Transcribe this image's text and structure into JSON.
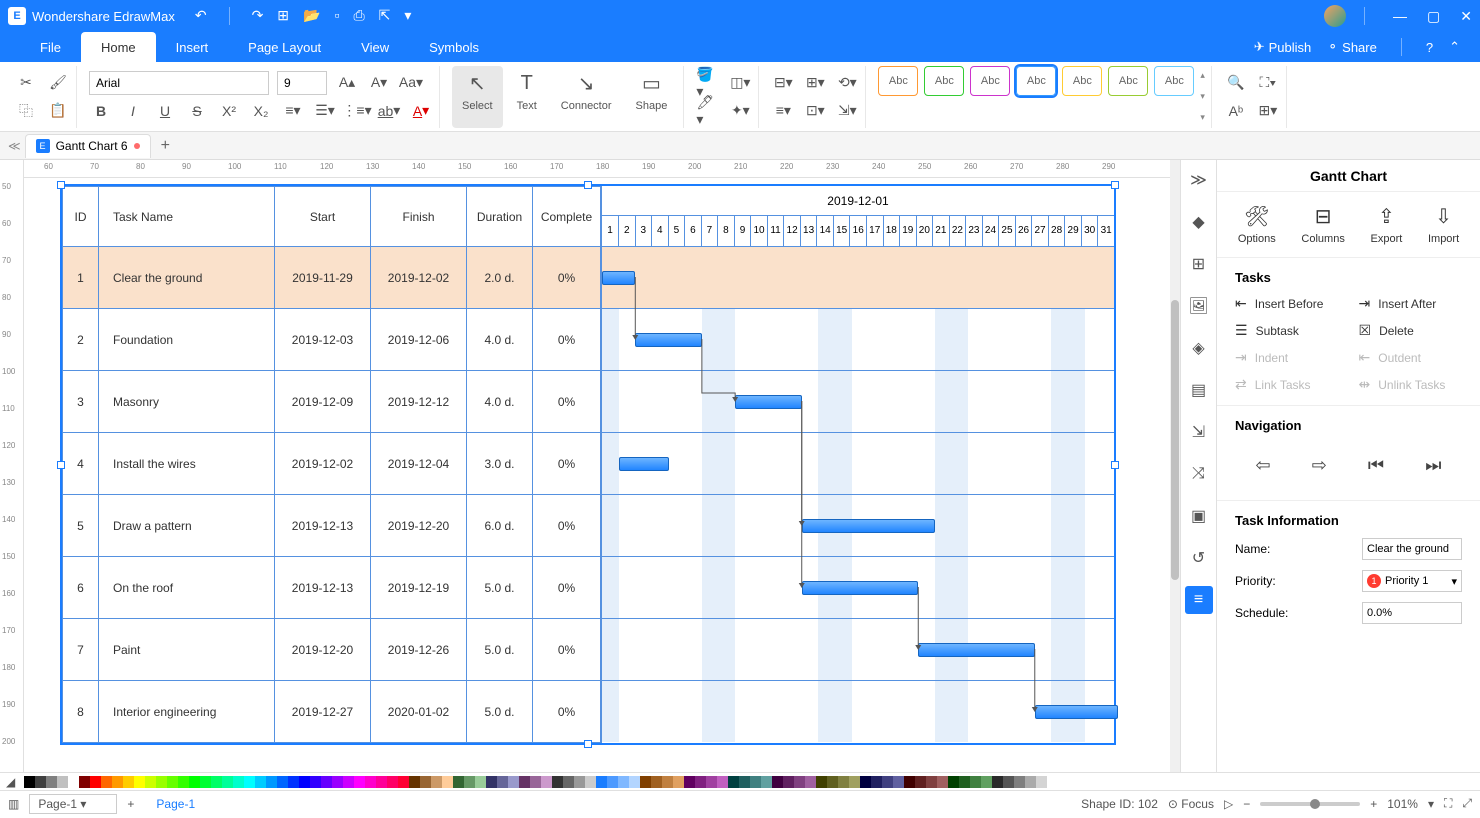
{
  "app": {
    "name": "Wondershare EdrawMax"
  },
  "win_controls": {
    "minimize": "—",
    "maximize": "▢",
    "close": "✕"
  },
  "menu": {
    "tabs": [
      "File",
      "Home",
      "Insert",
      "Page Layout",
      "View",
      "Symbols"
    ],
    "active": 1,
    "publish": "Publish",
    "share": "Share"
  },
  "ribbon": {
    "font": "Arial",
    "font_size": "9",
    "tools": {
      "select": "Select",
      "text": "Text",
      "connector": "Connector",
      "shape": "Shape"
    },
    "abc_colors": [
      "#ff9933",
      "#33cc33",
      "#cc33cc",
      "#3399ff",
      "#ffcc33",
      "#99cc33",
      "#66ccff"
    ]
  },
  "doc_tab": {
    "name": "Gantt Chart 6"
  },
  "ruler_h_start": 60,
  "ruler_h_step": 10,
  "ruler_h_count": 24,
  "ruler_v_start": 50,
  "ruler_v_step": 10,
  "ruler_v_count": 16,
  "gantt": {
    "month_label": "2019-12-01",
    "day_count": 31,
    "weekend_cols": [
      [
        0,
        1
      ],
      [
        6,
        8
      ],
      [
        13,
        15
      ],
      [
        20,
        22
      ],
      [
        27,
        29
      ]
    ],
    "columns": [
      "ID",
      "Task Name",
      "Start",
      "Finish",
      "Duration",
      "Complete"
    ],
    "rows": [
      {
        "id": "1",
        "name": "Clear the ground",
        "start": "2019-11-29",
        "finish": "2019-12-02",
        "dur": "2.0 d.",
        "comp": "0%",
        "bar_from": 0,
        "bar_to": 2,
        "selected": true
      },
      {
        "id": "2",
        "name": "Foundation",
        "start": "2019-12-03",
        "finish": "2019-12-06",
        "dur": "4.0 d.",
        "comp": "0%",
        "bar_from": 2,
        "bar_to": 6
      },
      {
        "id": "3",
        "name": "Masonry",
        "start": "2019-12-09",
        "finish": "2019-12-12",
        "dur": "4.0 d.",
        "comp": "0%",
        "bar_from": 8,
        "bar_to": 12
      },
      {
        "id": "4",
        "name": "Install the wires",
        "start": "2019-12-02",
        "finish": "2019-12-04",
        "dur": "3.0 d.",
        "comp": "0%",
        "bar_from": 1,
        "bar_to": 4
      },
      {
        "id": "5",
        "name": "Draw a pattern",
        "start": "2019-12-13",
        "finish": "2019-12-20",
        "dur": "6.0 d.",
        "comp": "0%",
        "bar_from": 12,
        "bar_to": 20
      },
      {
        "id": "6",
        "name": "On the roof",
        "start": "2019-12-13",
        "finish": "2019-12-19",
        "dur": "5.0 d.",
        "comp": "0%",
        "bar_from": 12,
        "bar_to": 19
      },
      {
        "id": "7",
        "name": "Paint",
        "start": "2019-12-20",
        "finish": "2019-12-26",
        "dur": "5.0 d.",
        "comp": "0%",
        "bar_from": 19,
        "bar_to": 26
      },
      {
        "id": "8",
        "name": "Interior engineering",
        "start": "2019-12-27",
        "finish": "2020-01-02",
        "dur": "5.0 d.",
        "comp": "0%",
        "bar_from": 26,
        "bar_to": 31
      }
    ],
    "dependencies": [
      {
        "from_row": 0,
        "from_day": 2,
        "to_row": 1,
        "to_day": 2
      },
      {
        "from_row": 1,
        "from_day": 6,
        "to_row": 2,
        "to_day": 8
      },
      {
        "from_row": 2,
        "from_day": 12,
        "to_row": 4,
        "to_day": 12
      },
      {
        "from_row": 2,
        "from_day": 12,
        "to_row": 5,
        "to_day": 12
      },
      {
        "from_row": 5,
        "from_day": 19,
        "to_row": 6,
        "to_day": 19
      },
      {
        "from_row": 6,
        "from_day": 26,
        "to_row": 7,
        "to_day": 26
      }
    ]
  },
  "right_panel": {
    "title": "Gantt Chart",
    "actions": {
      "options": "Options",
      "columns": "Columns",
      "export": "Export",
      "import": "Import"
    },
    "tasks_label": "Tasks",
    "task_buttons": {
      "insert_before": "Insert Before",
      "insert_after": "Insert After",
      "subtask": "Subtask",
      "delete": "Delete",
      "indent": "Indent",
      "outdent": "Outdent",
      "link": "Link Tasks",
      "unlink": "Unlink Tasks"
    },
    "nav_label": "Navigation",
    "info_label": "Task Information",
    "name_label": "Name:",
    "name_value": "Clear the ground",
    "priority_label": "Priority:",
    "priority_value": "Priority 1",
    "priority_num": "1",
    "schedule_label": "Schedule:",
    "schedule_value": "0.0%"
  },
  "palette_colors": [
    "#000000",
    "#404040",
    "#808080",
    "#c0c0c0",
    "#ffffff",
    "#800000",
    "#ff0000",
    "#ff6600",
    "#ff9900",
    "#ffcc00",
    "#ffff00",
    "#ccff00",
    "#99ff00",
    "#66ff00",
    "#33ff00",
    "#00ff00",
    "#00ff33",
    "#00ff66",
    "#00ff99",
    "#00ffcc",
    "#00ffff",
    "#00ccff",
    "#0099ff",
    "#0066ff",
    "#0033ff",
    "#0000ff",
    "#3300ff",
    "#6600ff",
    "#9900ff",
    "#cc00ff",
    "#ff00ff",
    "#ff00cc",
    "#ff0099",
    "#ff0066",
    "#ff0033",
    "#663300",
    "#996633",
    "#cc9966",
    "#ffcc99",
    "#336633",
    "#669966",
    "#99cc99",
    "#333366",
    "#666699",
    "#9999cc",
    "#663366",
    "#996699",
    "#cc99cc",
    "#333333",
    "#666666",
    "#999999",
    "#cccccc",
    "#1a7dff",
    "#4d9aff",
    "#80b8ff",
    "#b3d5ff",
    "#804000",
    "#a06020",
    "#c08040",
    "#e0a060",
    "#600060",
    "#802080",
    "#a040a0",
    "#c060c0",
    "#004040",
    "#206060",
    "#408080",
    "#60a0a0",
    "#400040",
    "#602060",
    "#804080",
    "#a060a0",
    "#404000",
    "#606020",
    "#808040",
    "#a0a060",
    "#000040",
    "#202060",
    "#404080",
    "#6060a0",
    "#400000",
    "#602020",
    "#804040",
    "#a06060",
    "#004000",
    "#206020",
    "#408040",
    "#60a060",
    "#2a2a2a",
    "#555555",
    "#7f7f7f",
    "#aaaaaa",
    "#d4d4d4"
  ],
  "status": {
    "page_sel": "Page-1",
    "page_tab": "Page-1",
    "shape_id_label": "Shape ID:",
    "shape_id": "102",
    "focus": "Focus",
    "zoom": "101%"
  }
}
